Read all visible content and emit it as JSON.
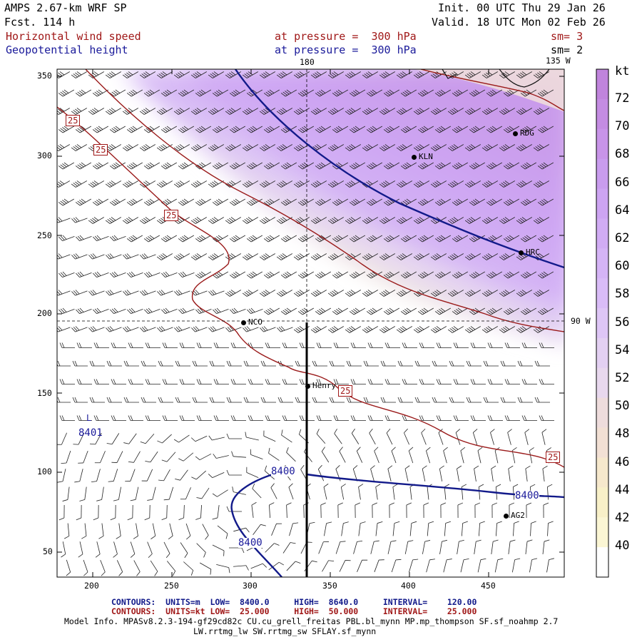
{
  "header": {
    "model": "AMPS 2.67-km WRF SP",
    "forecast": "Fcst. 114 h",
    "init": "Init. 00 UTC Thu 29 Jan 26",
    "valid": "Valid. 18 UTC Mon 02 Feb 26",
    "field1": "Horizontal wind speed",
    "field2": "Geopotential height",
    "pressure1": "at pressure =  300 hPa",
    "pressure2": "at pressure =  300 hPa",
    "sm1": "sm= 3",
    "sm2": "sm= 2"
  },
  "map": {
    "lon_label_top": "180",
    "lon_label_right_top": "135 W",
    "lon_label_right_mid": "90 W",
    "x_ticks": [
      "200",
      "250",
      "300",
      "350",
      "400",
      "450"
    ],
    "y_ticks": [
      "350",
      "300",
      "250",
      "200",
      "150",
      "100",
      "50"
    ],
    "stations": [
      {
        "name": "RDG"
      },
      {
        "name": "KLN"
      },
      {
        "name": "HRC"
      },
      {
        "name": "NCO"
      },
      {
        "name": "Henry"
      },
      {
        "name": "AG2"
      }
    ],
    "contour_labels": {
      "speed": [
        "25",
        "25",
        "25",
        "25",
        "25"
      ],
      "height": [
        "8400",
        "8400",
        "8400"
      ],
      "extrema": "8401",
      "low_marker": "L"
    }
  },
  "colorbar": {
    "unit": "kt",
    "levels": [
      "72",
      "70",
      "68",
      "66",
      "64",
      "62",
      "60",
      "58",
      "56",
      "54",
      "52",
      "50",
      "48",
      "46",
      "44",
      "42",
      "40"
    ],
    "colors_top_to_bottom": [
      "#c084dc",
      "#c48ce2",
      "#c894e8",
      "#c99cee",
      "#cda4f2",
      "#d1acf4",
      "#d5b4f6",
      "#d9bcf7",
      "#dec6f6",
      "#e3d0f2",
      "#e8d8ee",
      "#eedcdc",
      "#f2e0d4",
      "#f6e8cc",
      "#f8f0c8",
      "#fbf6d4",
      "#ffffff"
    ]
  },
  "footer": {
    "contours_label": "CONTOURS:",
    "line1_units": "UNITS=m",
    "line1_low": "LOW=  8400.0",
    "line1_high": "HIGH=  8640.0",
    "line1_interval": "INTERVAL=    120.00",
    "line2_units": "UNITS=kt",
    "line2_low": "LOW=  25.000",
    "line2_high": "HIGH=  50.000",
    "line2_interval": "INTERVAL=    25.000",
    "model_info": "Model Info. MPASv8.2.3-194-gf29cd82c CU.cu_grell_freitas PBL.bl_mynn MP.mp_thompson SF.sf_noahmp 2.7",
    "model_info2": "LW.rrtmg_lw SW.rrtmg_sw SFLAY.sf_mynn"
  }
}
